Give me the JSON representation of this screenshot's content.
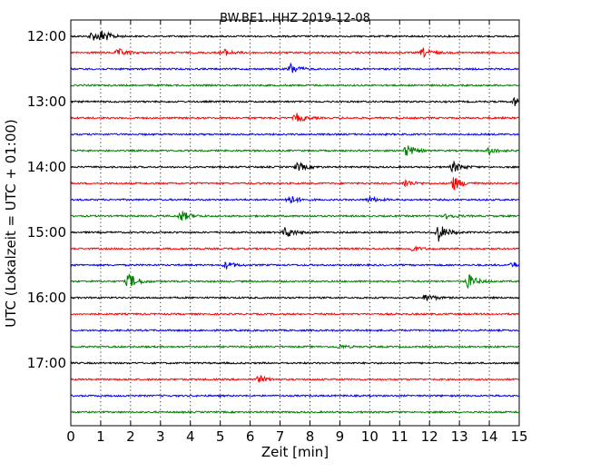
{
  "chart_data": {
    "type": "line",
    "title": "BW.BE1..HHZ 2019-12-08",
    "xlabel": "Zeit  [min]",
    "ylabel": "UTC (Lokalzeit = UTC + 01:00)",
    "xlim": [
      0,
      15
    ],
    "x_ticks": [
      0,
      1,
      2,
      3,
      4,
      5,
      6,
      7,
      8,
      9,
      10,
      11,
      12,
      13,
      14,
      15
    ],
    "x_tick_labels": [
      "0",
      "1",
      "2",
      "3",
      "4",
      "5",
      "6",
      "7",
      "8",
      "9",
      "10",
      "11",
      "12",
      "13",
      "14",
      "15"
    ],
    "y_tick_labels": [
      "12:00",
      "13:00",
      "14:00",
      "15:00",
      "16:00",
      "17:00"
    ],
    "y_tick_trace_index": [
      0,
      4,
      8,
      12,
      16,
      20
    ],
    "grid": {
      "vertical_dotted": true
    },
    "trace_interval_minutes": 15,
    "trace_start_times": [
      "12:00",
      "12:15",
      "12:30",
      "12:45",
      "13:00",
      "13:15",
      "13:30",
      "13:45",
      "14:00",
      "14:15",
      "14:30",
      "14:45",
      "15:00",
      "15:15",
      "15:30",
      "15:45",
      "16:00",
      "16:15",
      "16:30",
      "16:45",
      "17:00",
      "17:15",
      "17:30",
      "17:45"
    ],
    "colors": [
      "#000000",
      "#ff0000",
      "#0000ff",
      "#008000"
    ],
    "traces": [
      {
        "start": "12:00",
        "events": [
          {
            "t": 0.7,
            "amp": 5
          },
          {
            "t": 1.05,
            "amp": 6
          }
        ]
      },
      {
        "start": "12:15",
        "events": [
          {
            "t": 1.6,
            "amp": 4
          },
          {
            "t": 5.1,
            "amp": 4
          },
          {
            "t": 11.8,
            "amp": 5
          }
        ]
      },
      {
        "start": "12:30",
        "events": [
          {
            "t": 7.35,
            "amp": 6
          }
        ]
      },
      {
        "start": "12:45",
        "events": []
      },
      {
        "start": "13:00",
        "events": [
          {
            "t": 14.85,
            "amp": 5
          }
        ]
      },
      {
        "start": "13:15",
        "events": [
          {
            "t": 7.55,
            "amp": 5
          }
        ]
      },
      {
        "start": "13:30",
        "events": []
      },
      {
        "start": "13:45",
        "events": [
          {
            "t": 11.25,
            "amp": 7
          },
          {
            "t": 14.0,
            "amp": 4
          }
        ]
      },
      {
        "start": "14:00",
        "events": [
          {
            "t": 7.6,
            "amp": 5
          },
          {
            "t": 12.8,
            "amp": 6
          }
        ]
      },
      {
        "start": "14:15",
        "events": [
          {
            "t": 11.2,
            "amp": 4
          },
          {
            "t": 12.8,
            "amp": 8
          }
        ]
      },
      {
        "start": "14:30",
        "events": [
          {
            "t": 7.3,
            "amp": 5
          },
          {
            "t": 10.0,
            "amp": 3
          }
        ]
      },
      {
        "start": "14:45",
        "events": [
          {
            "t": 3.7,
            "amp": 6
          },
          {
            "t": 12.6,
            "amp": 3
          }
        ]
      },
      {
        "start": "15:00",
        "events": [
          {
            "t": 7.2,
            "amp": 6
          },
          {
            "t": 12.3,
            "amp": 10
          }
        ]
      },
      {
        "start": "15:15",
        "events": [
          {
            "t": 11.4,
            "amp": 3
          }
        ]
      },
      {
        "start": "15:30",
        "events": [
          {
            "t": 5.2,
            "amp": 4
          },
          {
            "t": 14.8,
            "amp": 3
          }
        ]
      },
      {
        "start": "15:45",
        "events": [
          {
            "t": 1.95,
            "amp": 9
          },
          {
            "t": 13.3,
            "amp": 8
          }
        ]
      },
      {
        "start": "16:00",
        "events": [
          {
            "t": 11.9,
            "amp": 4
          }
        ]
      },
      {
        "start": "16:15",
        "events": []
      },
      {
        "start": "16:30",
        "events": []
      },
      {
        "start": "16:45",
        "events": [
          {
            "t": 9.0,
            "amp": 2
          }
        ]
      },
      {
        "start": "17:00",
        "events": []
      },
      {
        "start": "17:15",
        "events": [
          {
            "t": 6.3,
            "amp": 4
          }
        ]
      },
      {
        "start": "17:30",
        "events": []
      },
      {
        "start": "17:45",
        "events": []
      }
    ]
  }
}
